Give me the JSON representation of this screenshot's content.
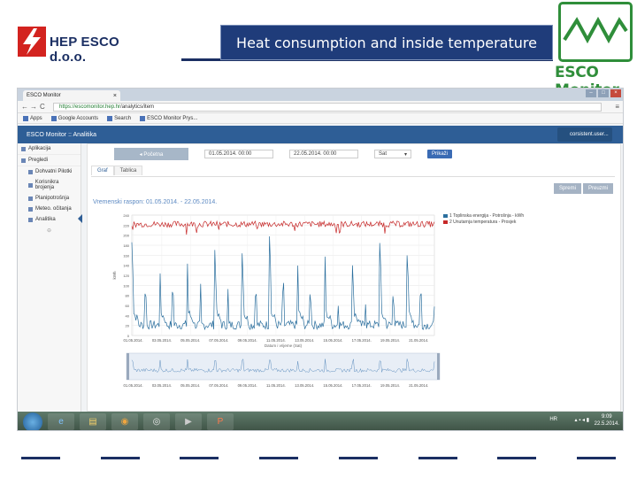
{
  "slide": {
    "title": "Heat consumption and inside temperature",
    "company": "HEP ESCO d.o.o.",
    "product_logo": "ESCO Monitor",
    "colors": {
      "navy": "#1f3c7a",
      "green": "#2f8e3a",
      "red": "#c62828"
    }
  },
  "browser": {
    "tab_title": "ESCO Monitor",
    "url_secure": "https://escomonitor.hep.hr",
    "url_path": "/analytics/item",
    "bookmarks": [
      "Apps",
      "Google Accounts",
      "Search",
      "ESCO Monitor Prys..."
    ]
  },
  "app": {
    "header_title": "ESCO Monitor :: Analitika",
    "user": "corsistent.user...",
    "sidebar": {
      "items": [
        {
          "label": "Aplikacija",
          "icon": "app-icon"
        },
        {
          "label": "Pregledi",
          "icon": "view-icon"
        }
      ],
      "subitems": [
        {
          "label": "Dohvatni Pilotki",
          "icon": "list-icon"
        },
        {
          "label": "Korisnikra brojenja",
          "icon": "user-icon"
        },
        {
          "label": "Planipotrošnja",
          "icon": "bar-icon"
        },
        {
          "label": "Meteo. očitanja",
          "icon": "sun-icon"
        },
        {
          "label": "Analitika",
          "icon": "chart-icon"
        }
      ]
    },
    "filters": {
      "back_button": "◂ Početna",
      "date_from": "01.05.2014. 00:00",
      "date_to": "22.05.2014. 00:00",
      "interval": "Sat",
      "apply_button": "Prikaži"
    },
    "tabs": [
      "Graf",
      "Tablica"
    ],
    "actions": [
      "Spremi",
      "Preuzmi"
    ]
  },
  "chart_data": [
    {
      "type": "line",
      "title": "Vremenski raspon: 01.05.2014. - 22.05.2014.",
      "xlabel": "Datum i vrijeme (Sat)",
      "ylabel": "kWh",
      "x_ticks": [
        "01.05.2014.",
        "03.05.2014.",
        "05.05.2014.",
        "07.05.2014.",
        "09.05.2014.",
        "11.05.2014.",
        "13.05.2014.",
        "15.05.2014.",
        "17.05.2014.",
        "19.05.2014.",
        "21.05.2014."
      ],
      "y_ticks": [
        0,
        20,
        40,
        60,
        80,
        100,
        120,
        140,
        160,
        180,
        200,
        220,
        240
      ],
      "ylim": [
        0,
        240
      ],
      "legend": [
        "1 Toplinska energija - Potrošnja - kWh",
        "2 Unutarnja temperatura - Prosjek"
      ],
      "series": [
        {
          "name": "1 Toplinska energija - Potrošnja - kWh",
          "color": "#2b6f9e",
          "pattern": "spikes",
          "peaks": [
            180,
            150,
            170,
            190,
            175,
            200,
            185,
            195,
            160,
            205,
            165
          ],
          "baseline": 12
        },
        {
          "name": "2 Unutarnja temperatura - Prosjek",
          "color": "#c62828",
          "pattern": "flat-noisy",
          "level": 222
        }
      ]
    },
    {
      "type": "line",
      "title": "",
      "x_ticks": [
        "01.05.2014.",
        "03.05.2014.",
        "05.05.2014.",
        "07.05.2014.",
        "09.05.2014.",
        "11.05.2014.",
        "13.05.2014.",
        "15.05.2014.",
        "17.05.2014.",
        "19.05.2014.",
        "21.05.2014."
      ],
      "series": [
        {
          "name": "navigator",
          "color": "#5f8fbf"
        }
      ]
    }
  ],
  "taskbar": {
    "language": "HR",
    "time": "9:09",
    "date": "22.5.2014."
  }
}
